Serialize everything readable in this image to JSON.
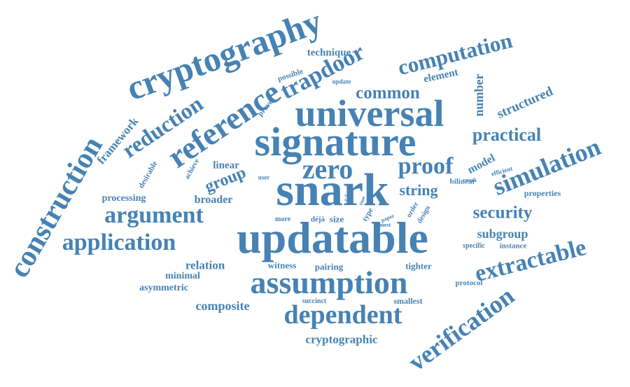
{
  "colors": {
    "word": "#4682b4",
    "background": "#ffffff"
  },
  "words": [
    {
      "id": "cryptography",
      "text": "cryptography"
    },
    {
      "id": "construction",
      "text": "construction"
    },
    {
      "id": "reference",
      "text": "reference"
    },
    {
      "id": "reduction",
      "text": "reduction"
    },
    {
      "id": "trapdoor",
      "text": "trapdoor"
    },
    {
      "id": "computation",
      "text": "computation"
    },
    {
      "id": "technique",
      "text": "technique"
    },
    {
      "id": "possible",
      "text": "possible"
    },
    {
      "id": "element",
      "text": "element"
    },
    {
      "id": "common",
      "text": "common"
    },
    {
      "id": "update",
      "text": "update"
    },
    {
      "id": "prover",
      "text": "prover"
    },
    {
      "id": "universal",
      "text": "universal"
    },
    {
      "id": "number",
      "text": "number"
    },
    {
      "id": "structured",
      "text": "structured"
    },
    {
      "id": "framework",
      "text": "framework"
    },
    {
      "id": "signature",
      "text": "signature"
    },
    {
      "id": "practical",
      "text": "practical"
    },
    {
      "id": "desirable",
      "text": "desirable"
    },
    {
      "id": "achieve",
      "text": "achieve"
    },
    {
      "id": "linear",
      "text": "linear"
    },
    {
      "id": "zero",
      "text": "zero"
    },
    {
      "id": "proof",
      "text": "proof"
    },
    {
      "id": "model",
      "text": "model"
    },
    {
      "id": "efficient",
      "text": "efficient"
    },
    {
      "id": "simulation",
      "text": "simulation"
    },
    {
      "id": "group",
      "text": "group"
    },
    {
      "id": "user",
      "text": "user"
    },
    {
      "id": "result",
      "text": "result"
    },
    {
      "id": "bilinear",
      "text": "bilinear"
    },
    {
      "id": "snark",
      "text": "snark"
    },
    {
      "id": "string",
      "text": "string"
    },
    {
      "id": "properties",
      "text": "properties"
    },
    {
      "id": "processing",
      "text": "processing"
    },
    {
      "id": "broader",
      "text": "broader"
    },
    {
      "id": "argument",
      "text": "argument"
    },
    {
      "id": "security",
      "text": "security"
    },
    {
      "id": "time",
      "text": "time"
    },
    {
      "id": "order",
      "text": "order"
    },
    {
      "id": "design",
      "text": "design"
    },
    {
      "id": "type",
      "text": "type"
    },
    {
      "id": "paper",
      "text": "paper"
    },
    {
      "id": "honest",
      "text": "honest"
    },
    {
      "id": "srs",
      "text": "srs"
    },
    {
      "id": "fast",
      "text": "fast"
    },
    {
      "id": "more",
      "text": "more"
    },
    {
      "id": "deja",
      "text": "déjà"
    },
    {
      "id": "size",
      "text": "size"
    },
    {
      "id": "application",
      "text": "application"
    },
    {
      "id": "updatable",
      "text": "updatable"
    },
    {
      "id": "subgroup",
      "text": "subgroup"
    },
    {
      "id": "specific",
      "text": "specific"
    },
    {
      "id": "instance",
      "text": "instance"
    },
    {
      "id": "extractable",
      "text": "extractable"
    },
    {
      "id": "relation",
      "text": "relation"
    },
    {
      "id": "witness",
      "text": "witness"
    },
    {
      "id": "pairing",
      "text": "pairing"
    },
    {
      "id": "tighter",
      "text": "tighter"
    },
    {
      "id": "minimal",
      "text": "minimal"
    },
    {
      "id": "asymmetric",
      "text": "asymmetric"
    },
    {
      "id": "assumption",
      "text": "assumption"
    },
    {
      "id": "protocol",
      "text": "protocol"
    },
    {
      "id": "composite",
      "text": "composite"
    },
    {
      "id": "succinct",
      "text": "succinct"
    },
    {
      "id": "smallest",
      "text": "smallest"
    },
    {
      "id": "dependent",
      "text": "dependent"
    },
    {
      "id": "verification",
      "text": "verification"
    },
    {
      "id": "cryptographic",
      "text": "cryptographic"
    }
  ]
}
